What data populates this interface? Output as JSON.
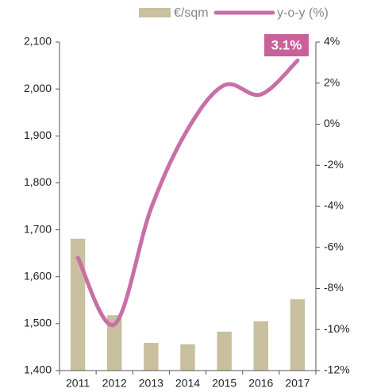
{
  "chart_data": {
    "type": "bar_line",
    "categories": [
      "2011",
      "2012",
      "2013",
      "2014",
      "2015",
      "2016",
      "2017"
    ],
    "series": [
      {
        "name": "€/sqm",
        "type": "bar",
        "color": "#c8c09e",
        "values": [
          1681,
          1518,
          1459,
          1456,
          1483,
          1505,
          1552
        ]
      },
      {
        "name": "y-o-y (%)",
        "type": "line",
        "axis": "y2",
        "color": "#c86fa6",
        "values": [
          -6.5,
          -9.75,
          -4.1,
          -0.25,
          1.9,
          1.45,
          3.1
        ]
      }
    ],
    "ylim": [
      1400,
      2100
    ],
    "yticks": [
      {
        "value": 1400,
        "label": "1,400"
      },
      {
        "value": 1500,
        "label": "1,500"
      },
      {
        "value": 1600,
        "label": "1,600"
      },
      {
        "value": 1700,
        "label": "1,700"
      },
      {
        "value": 1800,
        "label": "1,800"
      },
      {
        "value": 1900,
        "label": "1,900"
      },
      {
        "value": 2000,
        "label": "2,000"
      },
      {
        "value": 2100,
        "label": "2,100"
      }
    ],
    "y2lim": [
      -12,
      4
    ],
    "y2ticks": [
      {
        "value": -12,
        "label": "-12%"
      },
      {
        "value": -10,
        "label": "-10%"
      },
      {
        "value": -8,
        "label": "-8%"
      },
      {
        "value": -6,
        "label": "-6%"
      },
      {
        "value": -4,
        "label": "-4%"
      },
      {
        "value": -2,
        "label": "-2%"
      },
      {
        "value": 0,
        "label": "0%"
      },
      {
        "value": 2,
        "label": "2%"
      },
      {
        "value": 4,
        "label": "4%"
      }
    ],
    "annotations": [
      {
        "text": "3.1%",
        "color": "#c8619a"
      }
    ]
  }
}
